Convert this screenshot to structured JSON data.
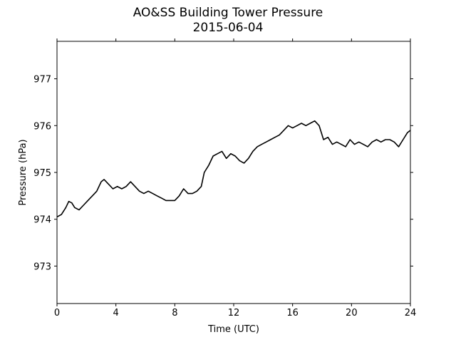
{
  "chart_data": {
    "type": "line",
    "title": "AO&SS Building Tower Pressure",
    "subtitle": "2015-06-04",
    "xlabel": "Time (UTC)",
    "ylabel": "Pressure (hPa)",
    "xlim": [
      0,
      24
    ],
    "ylim": [
      972.2,
      977.8
    ],
    "xticks": [
      0,
      4,
      8,
      12,
      16,
      20,
      24
    ],
    "yticks": [
      973,
      974,
      975,
      976,
      977
    ],
    "grid": false,
    "line_color": "#000000",
    "series": [
      {
        "x": [
          0,
          0.3,
          0.6,
          0.8,
          1.0,
          1.2,
          1.5,
          1.8,
          2.1,
          2.4,
          2.7,
          3.0,
          3.2,
          3.5,
          3.8,
          4.1,
          4.4,
          4.7,
          5.0,
          5.3,
          5.6,
          5.9,
          6.2,
          6.5,
          6.8,
          7.1,
          7.4,
          7.7,
          8.0,
          8.3,
          8.6,
          8.9,
          9.2,
          9.5,
          9.8,
          10.0,
          10.3,
          10.6,
          10.9,
          11.2,
          11.5,
          11.8,
          12.1,
          12.4,
          12.7,
          13.0,
          13.3,
          13.6,
          13.9,
          14.2,
          14.5,
          14.8,
          15.1,
          15.4,
          15.7,
          16.0,
          16.3,
          16.6,
          16.9,
          17.2,
          17.5,
          17.8,
          18.1,
          18.4,
          18.7,
          19.0,
          19.3,
          19.6,
          19.9,
          20.2,
          20.5,
          20.8,
          21.1,
          21.4,
          21.7,
          22.0,
          22.3,
          22.6,
          22.9,
          23.2,
          23.5,
          23.8,
          24.0
        ],
        "values": [
          974.05,
          974.1,
          974.25,
          974.38,
          974.35,
          974.25,
          974.2,
          974.3,
          974.4,
          974.5,
          974.6,
          974.8,
          974.85,
          974.75,
          974.65,
          974.7,
          974.65,
          974.7,
          974.8,
          974.7,
          974.6,
          974.55,
          974.6,
          974.55,
          974.5,
          974.45,
          974.4,
          974.4,
          974.4,
          974.5,
          974.65,
          974.55,
          974.55,
          974.6,
          974.7,
          975.0,
          975.15,
          975.35,
          975.4,
          975.45,
          975.3,
          975.4,
          975.35,
          975.25,
          975.2,
          975.3,
          975.45,
          975.55,
          975.6,
          975.65,
          975.7,
          975.75,
          975.8,
          975.9,
          976.0,
          975.95,
          976.0,
          976.05,
          976.0,
          976.05,
          976.1,
          976.0,
          975.7,
          975.75,
          975.6,
          975.65,
          975.6,
          975.55,
          975.7,
          975.6,
          975.65,
          975.6,
          975.55,
          975.65,
          975.7,
          975.65,
          975.7,
          975.7,
          975.65,
          975.55,
          975.7,
          975.85,
          975.9
        ]
      }
    ]
  }
}
